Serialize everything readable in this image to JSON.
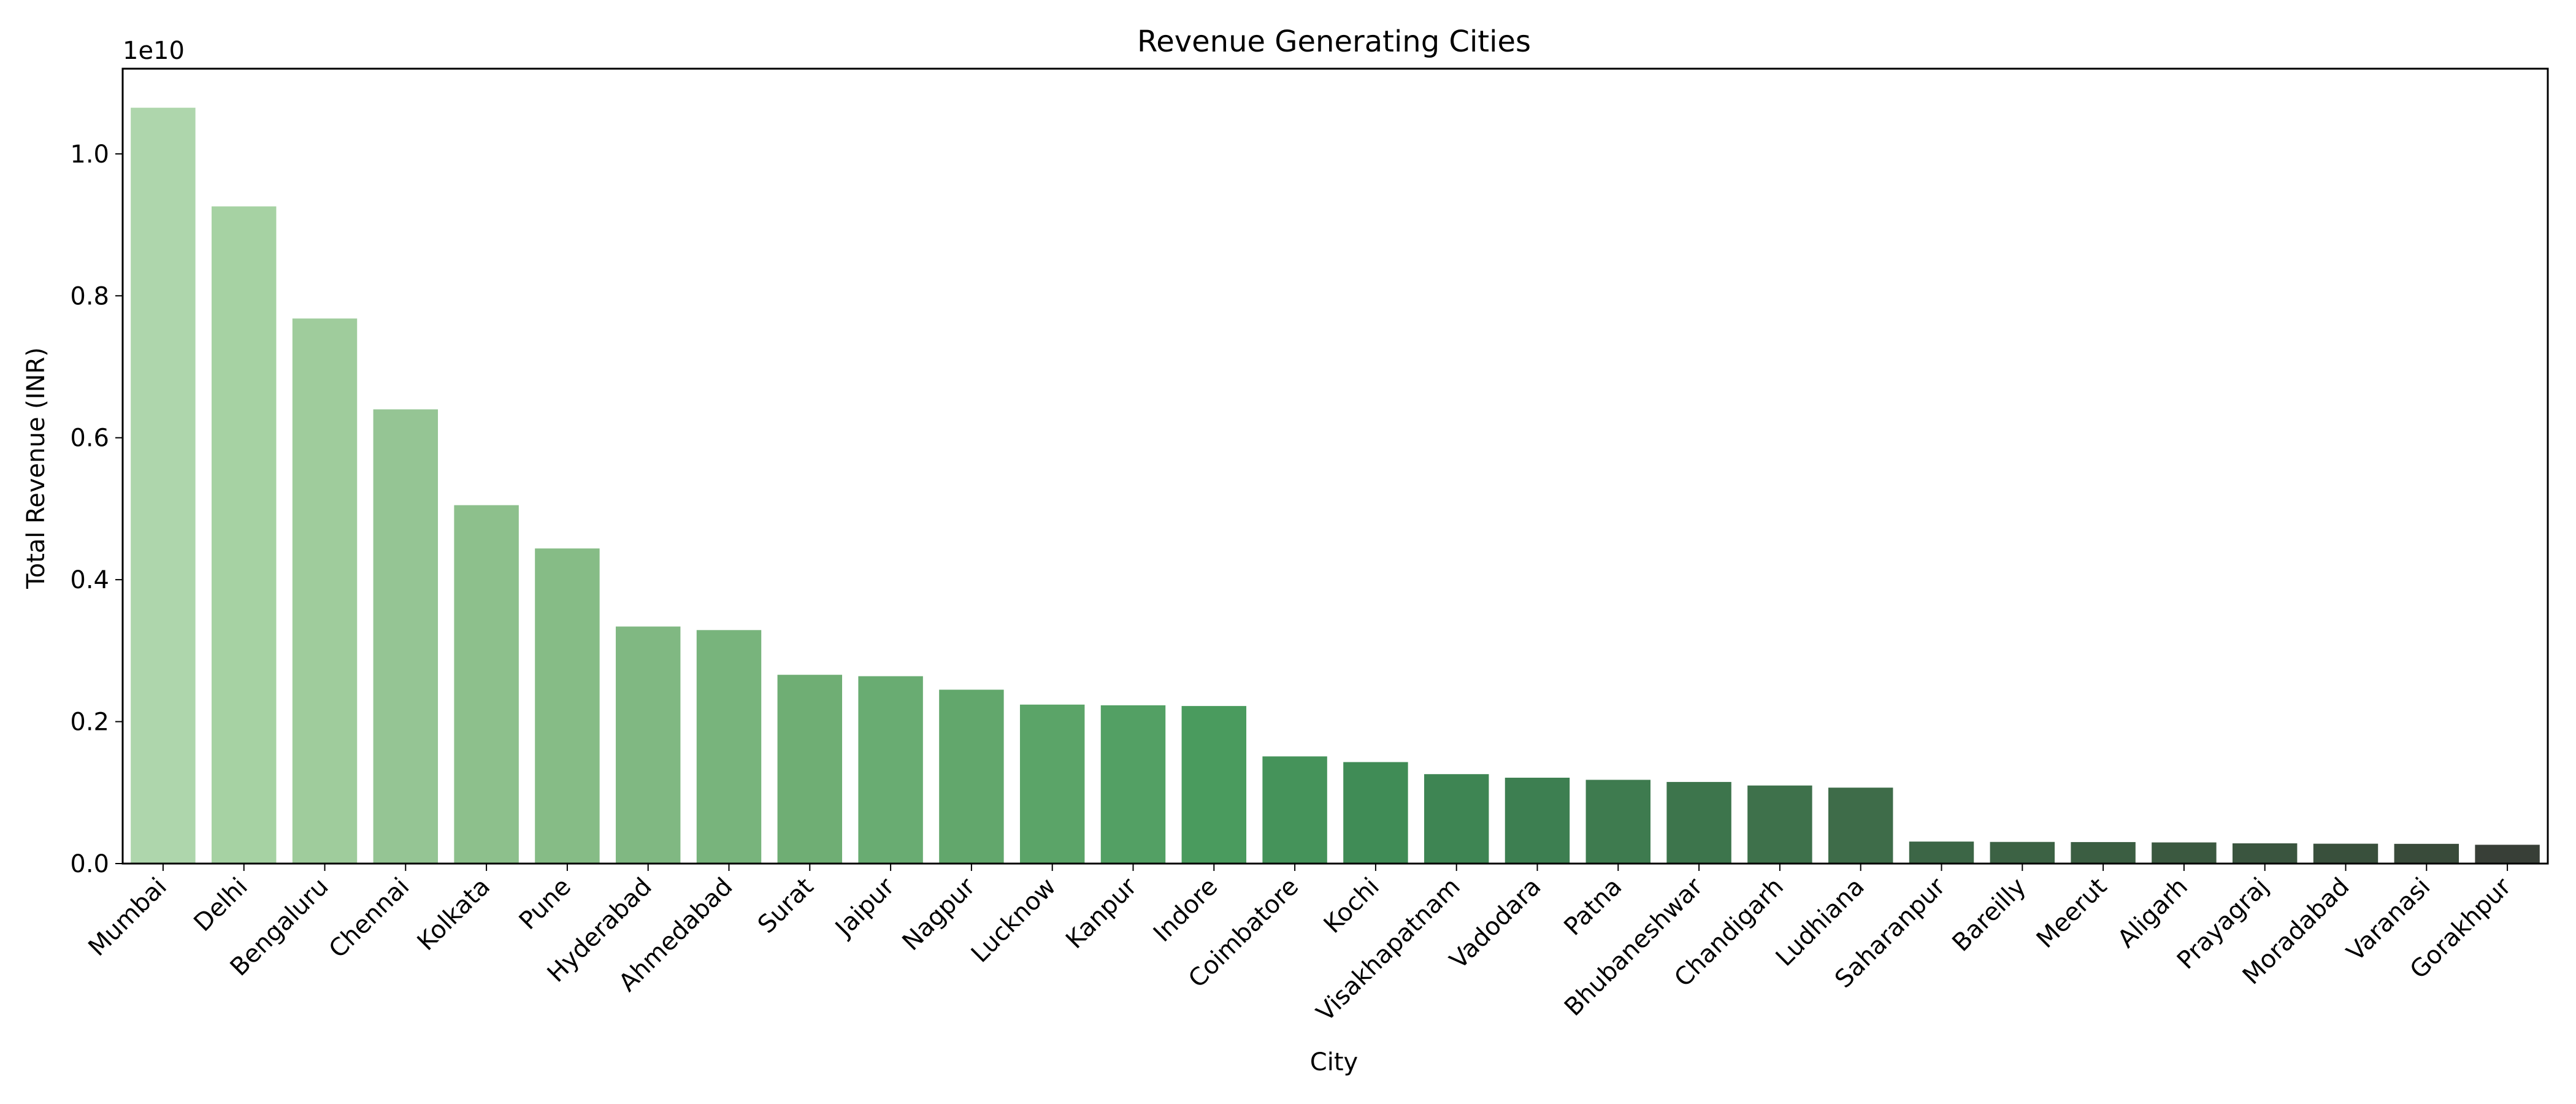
{
  "chart_data": {
    "type": "bar",
    "title": "Revenue Generating Cities",
    "xlabel": "City",
    "ylabel": "Total Revenue (INR)",
    "y_offset_label": "1e10",
    "ylim": [
      0,
      11200000000
    ],
    "y_ticks": [
      0,
      2000000000,
      4000000000,
      6000000000,
      8000000000,
      10000000000
    ],
    "y_tick_labels": [
      "0.0",
      "0.2",
      "0.4",
      "0.6",
      "0.8",
      "1.0"
    ],
    "grid": false,
    "legend": false,
    "categories": [
      "Mumbai",
      "Delhi",
      "Bengaluru",
      "Chennai",
      "Kolkata",
      "Pune",
      "Hyderabad",
      "Ahmedabad",
      "Surat",
      "Jaipur",
      "Nagpur",
      "Lucknow",
      "Kanpur",
      "Indore",
      "Coimbatore",
      "Kochi",
      "Visakhapatnam",
      "Vadodara",
      "Patna",
      "Bhubaneshwar",
      "Chandigarh",
      "Ludhiana",
      "Saharanpur",
      "Bareilly",
      "Meerut",
      "Aligarh",
      "Prayagraj",
      "Moradabad",
      "Varanasi",
      "Gorakhpur"
    ],
    "values": [
      10650000000,
      9260000000,
      7680000000,
      6400000000,
      5050000000,
      4440000000,
      3340000000,
      3290000000,
      2660000000,
      2640000000,
      2450000000,
      2240000000,
      2230000000,
      2220000000,
      1510000000,
      1430000000,
      1260000000,
      1210000000,
      1180000000,
      1150000000,
      1100000000,
      1070000000,
      310000000,
      305000000,
      303000000,
      298000000,
      285000000,
      280000000,
      278000000,
      265000000
    ],
    "colors": [
      "#aed6ac",
      "#a6d2a3",
      "#9fcc9c",
      "#95c594",
      "#8dc08c",
      "#86bc86",
      "#80b882",
      "#78b47c",
      "#6fae74",
      "#69ac72",
      "#62a76c",
      "#5ba468",
      "#53a064",
      "#4a9b5e",
      "#45935a",
      "#408c56",
      "#3e8553",
      "#3d7f51",
      "#3e7b4f",
      "#3d754c",
      "#3e714b",
      "#3e6c49",
      "#3c6646",
      "#3c6244",
      "#3b5e42",
      "#3b5940",
      "#3a553f",
      "#39503c",
      "#394b3a",
      "#383f37"
    ]
  }
}
